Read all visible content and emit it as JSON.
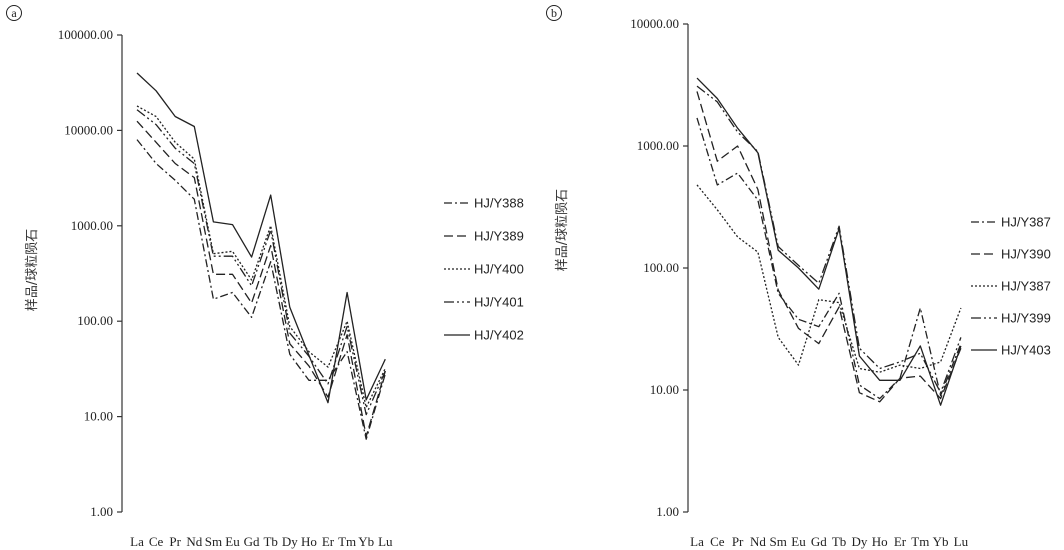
{
  "chart_data": [
    {
      "id": "a",
      "panel_label": "a",
      "type": "line",
      "ylabel": "样品/球粒陨石",
      "yscale": "log",
      "ylim": [
        1,
        100000
      ],
      "ytick_labels": [
        "1.00",
        "10.00",
        "100.00",
        "1000.00",
        "10000.00",
        "100000.00"
      ],
      "categories": [
        "La",
        "Ce",
        "Pr",
        "Nd",
        "Sm",
        "Eu",
        "Gd",
        "Tb",
        "Dy",
        "Ho",
        "Er",
        "Tm",
        "Yb",
        "Lu"
      ],
      "legend_position": "right",
      "series": [
        {
          "name": "HJ/Y388",
          "dash": "8,3,2,3",
          "values": [
            8000,
            4500,
            3000,
            1900,
            170,
            200,
            110,
            420,
            45,
            24,
            24,
            48,
            5.8,
            28
          ]
        },
        {
          "name": "HJ/Y389",
          "dash": "9,4",
          "values": [
            12500,
            7500,
            4500,
            3200,
            310,
            310,
            155,
            620,
            58,
            34,
            16,
            72,
            6.2,
            30
          ]
        },
        {
          "name": "HJ/Y400",
          "dash": "2,2",
          "values": [
            18000,
            14000,
            7500,
            5000,
            510,
            540,
            270,
            1000,
            88,
            48,
            33,
            100,
            12.5,
            32
          ]
        },
        {
          "name": "HJ/Y401",
          "dash": "10,3,2,3,2,3",
          "values": [
            16500,
            11500,
            6500,
            4500,
            480,
            480,
            235,
            900,
            75,
            43,
            22,
            88,
            10.5,
            30
          ]
        },
        {
          "name": "HJ/Y402",
          "dash": "",
          "values": [
            40000,
            26000,
            14000,
            11000,
            1100,
            1030,
            470,
            2100,
            140,
            44,
            14,
            200,
            15,
            40
          ]
        }
      ]
    },
    {
      "id": "b",
      "panel_label": "b",
      "type": "line",
      "ylabel": "样品/球粒陨石",
      "yscale": "log",
      "ylim": [
        1,
        10000
      ],
      "ytick_labels": [
        "1.00",
        "10.00",
        "100.00",
        "1000.00",
        "10000.00"
      ],
      "categories": [
        "La",
        "Ce",
        "Pr",
        "Nd",
        "Sm",
        "Eu",
        "Gd",
        "Tb",
        "Dy",
        "Ho",
        "Er",
        "Tm",
        "Yb",
        "Lu"
      ],
      "legend_position": "right",
      "series": [
        {
          "name": "HJ/Y387",
          "dash": "8,3,2,3",
          "values": [
            1700,
            480,
            600,
            360,
            62,
            38,
            33,
            62,
            11,
            8.5,
            12.5,
            47,
            9,
            24
          ]
        },
        {
          "name": "HJ/Y390",
          "dash": "9,4",
          "values": [
            2800,
            750,
            1000,
            440,
            66,
            32,
            24,
            48,
            9.5,
            8,
            12.5,
            13,
            8.5,
            22
          ]
        },
        {
          "name": "HJ/Y387",
          "dash": "2,2",
          "values": [
            480,
            300,
            180,
            135,
            27,
            16,
            55,
            52,
            15,
            14,
            16,
            15,
            17,
            47
          ]
        },
        {
          "name": "HJ/Y399",
          "dash": "10,3,2,3,2,3",
          "values": [
            3100,
            2300,
            1300,
            900,
            150,
            105,
            75,
            220,
            22,
            15,
            17,
            20,
            9.5,
            27
          ]
        },
        {
          "name": "HJ/Y403",
          "dash": "",
          "values": [
            3600,
            2450,
            1400,
            880,
            140,
            100,
            67,
            210,
            19,
            12,
            12,
            23,
            7.5,
            23
          ]
        }
      ]
    }
  ]
}
